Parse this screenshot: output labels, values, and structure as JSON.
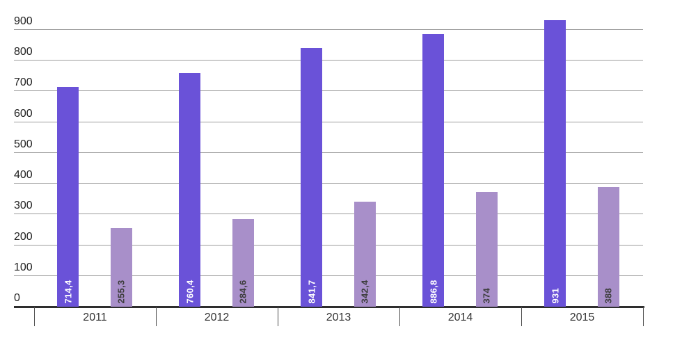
{
  "chart_data": {
    "type": "bar",
    "title": "",
    "categories": [
      "2011",
      "2012",
      "2013",
      "2014",
      "2015"
    ],
    "series": [
      {
        "name": "primary-series",
        "color": "#6a52d8",
        "label_color": "#ffffff",
        "values": [
          714.4,
          760.4,
          841.7,
          886.8,
          931
        ],
        "value_labels": [
          "714,4",
          "760,4",
          "841,7",
          "886,8",
          "931"
        ]
      },
      {
        "name": "secondary-series",
        "color": "#a88fc9",
        "label_color": "#3d3d3d",
        "values": [
          255.3,
          284.6,
          342.4,
          374,
          388
        ],
        "value_labels": [
          "255,3",
          "284,6",
          "342,4",
          "374",
          "388"
        ]
      }
    ],
    "y_ticks": [
      0,
      100,
      200,
      300,
      400,
      500,
      600,
      700,
      800,
      900
    ],
    "y_tick_labels": [
      "0",
      "100",
      "200",
      "300",
      "400",
      "500",
      "600",
      "700",
      "800",
      "900"
    ],
    "ylim": [
      0,
      900
    ],
    "grid": true,
    "legend_position": "none",
    "value_label_rotation": -90
  },
  "colors": {
    "background": "#ffffff",
    "gridline": "#9c9c9c",
    "axis_line": "#2e2e2e",
    "tick_mark": "#4a4a4a",
    "axis_text": "#212121",
    "category_text": "#333333"
  }
}
